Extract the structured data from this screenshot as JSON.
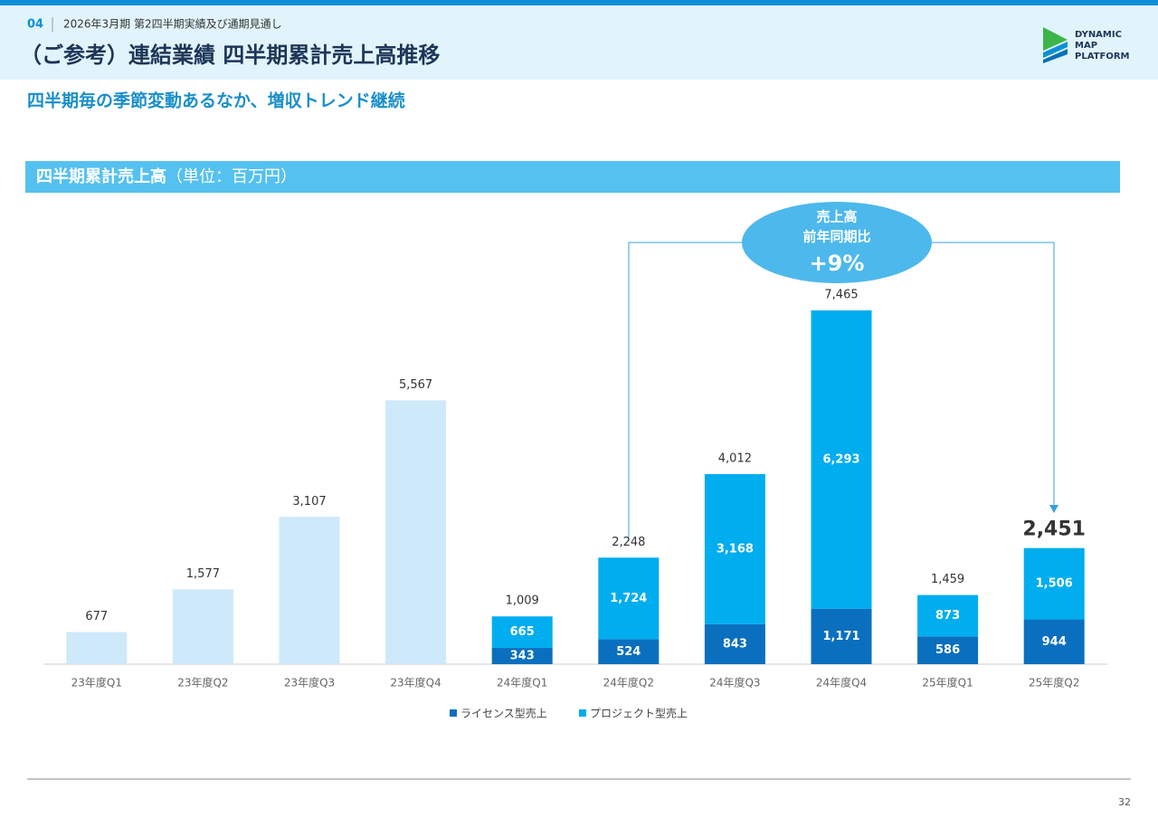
{
  "header": {
    "page_no": "04",
    "breadcrumb": "2026年3月期 第2四半期実績及び通期見通し",
    "title": "（ご参考）連結業績 四半期累計売上高推移",
    "logo": [
      "DYNAMIC",
      "MAP",
      "PLATFORM"
    ]
  },
  "subtitle": "四半期毎の季節変動あるなか、増収トレンド継続",
  "section": {
    "title": "四半期累計売上高",
    "unit": "（単位：百万円）"
  },
  "page_number": "32",
  "chart_data": {
    "type": "bar",
    "categories": [
      "23年度Q1",
      "23年度Q2",
      "23年度Q3",
      "23年度Q4",
      "24年度Q1",
      "24年度Q2",
      "24年度Q3",
      "24年度Q4",
      "25年度Q1",
      "25年度Q2"
    ],
    "totals": [
      677,
      1577,
      3107,
      5567,
      1009,
      2248,
      4012,
      7465,
      1459,
      2451
    ],
    "total_labels": [
      "677",
      "1,577",
      "3,107",
      "5,567",
      "1,009",
      "2,248",
      "4,012",
      "7,465",
      "1,459",
      "2,451"
    ],
    "total_color": "#cde9fa",
    "series": [
      {
        "name": "ライセンス型売上",
        "color": "#0b6fbf",
        "values": [
          null,
          null,
          null,
          null,
          343,
          524,
          843,
          1171,
          586,
          944
        ],
        "value_labels": [
          null,
          null,
          null,
          null,
          "343",
          "524",
          "843",
          "1,171",
          "586",
          "944"
        ]
      },
      {
        "name": "プロジェクト型売上",
        "color": "#00adef",
        "values": [
          null,
          null,
          null,
          null,
          665,
          1724,
          3168,
          6293,
          873,
          1506
        ],
        "value_labels": [
          null,
          null,
          null,
          null,
          "665",
          "1,724",
          "3,168",
          "6,293",
          "873",
          "1,506"
        ]
      }
    ],
    "annotation": {
      "lines": [
        "売上高",
        "前年同期比"
      ],
      "growth": "+9%"
    }
  }
}
